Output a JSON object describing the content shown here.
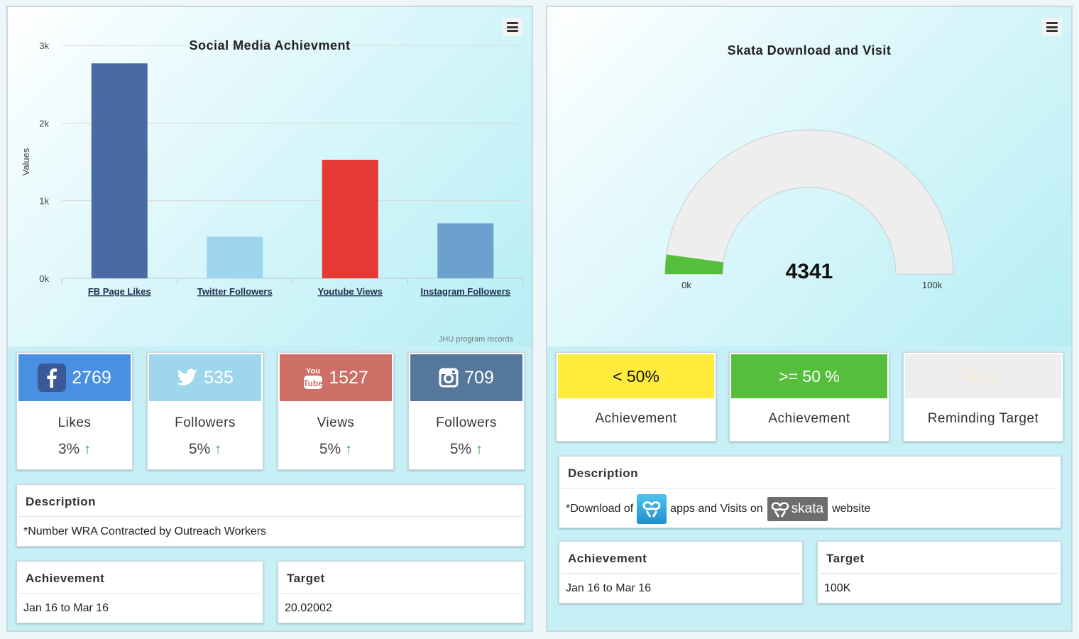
{
  "left": {
    "chart_data": {
      "type": "bar",
      "title": "Social Media Achievment",
      "xlabel": "",
      "ylabel": "Values",
      "categories": [
        "FB Page Likes",
        "Twitter Followers",
        "Youtube Views",
        "Instagram Followers"
      ],
      "values": [
        2769,
        535,
        1527,
        709
      ],
      "colors": [
        "#4a6aa3",
        "#9dd4ee",
        "#e53935",
        "#6ca0cf"
      ],
      "ylim": [
        0,
        3000
      ],
      "yticks": [
        "0k",
        "1k",
        "2k",
        "3k"
      ],
      "credits": "JHU program records",
      "grid": true
    },
    "stats": [
      {
        "icon": "facebook-icon",
        "value": "2769",
        "label": "Likes",
        "pct": "3%",
        "color": "#4a90e2"
      },
      {
        "icon": "twitter-icon",
        "value": "535",
        "label": "Followers",
        "pct": "5%",
        "color": "#9ed6ec"
      },
      {
        "icon": "youtube-icon",
        "value": "1527",
        "label": "Views",
        "pct": "5%",
        "color": "#cd6f66"
      },
      {
        "icon": "instagram-icon",
        "value": "709",
        "label": "Followers",
        "pct": "5%",
        "color": "#56779c"
      }
    ],
    "description": {
      "title": "Description",
      "text": "*Number WRA Contracted by Outreach Workers"
    },
    "achievement": {
      "title": "Achievement",
      "text": "Jan 16 to Mar 16"
    },
    "target": {
      "title": "Target",
      "text": "20.02002"
    }
  },
  "right": {
    "gauge": {
      "title": "Skata Download and Visit",
      "value": 4341,
      "value_label": "4341",
      "min": 0,
      "max": 100000,
      "min_label": "0k",
      "max_label": "100k",
      "fill_color": "#55bf3b",
      "track_color": "#eeeeee"
    },
    "legend": [
      {
        "label": "< 50%",
        "caption": "Achievement",
        "color": "#ffeb3b",
        "text_color": "#111111"
      },
      {
        "label": ">= 50 %",
        "caption": "Achievement",
        "color": "#55bf3b",
        "text_color": "#ffffff"
      },
      {
        "label": "Rest",
        "caption": "Reminding Target",
        "color": "#eeeeee",
        "text_color": "#f7e9d8"
      }
    ],
    "description": {
      "title": "Description",
      "prefix": "*Download of",
      "middle": "apps and Visits on",
      "brand": "skata",
      "suffix": "website"
    },
    "achievement": {
      "title": "Achievement",
      "text": "Jan 16 to Mar 16"
    },
    "target": {
      "title": "Target",
      "text": "100K"
    }
  }
}
